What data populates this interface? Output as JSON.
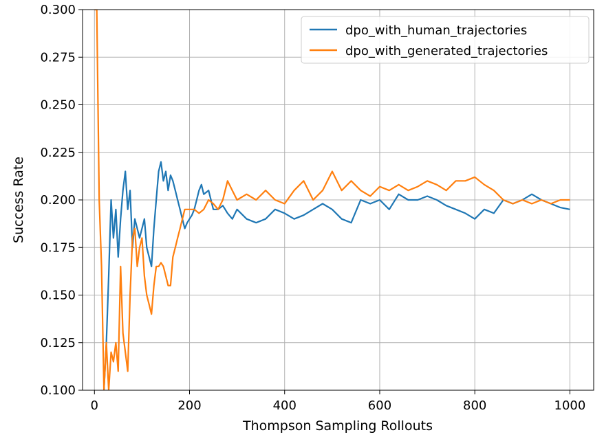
{
  "chart_data": {
    "type": "line",
    "xlabel": "Thompson Sampling Rollouts",
    "ylabel": "Success Rate",
    "xlim": [
      -25,
      1050
    ],
    "ylim": [
      0.1,
      0.3
    ],
    "xticks": [
      0,
      200,
      400,
      600,
      800,
      1000
    ],
    "xtick_labels": [
      "0",
      "200",
      "400",
      "600",
      "800",
      "1000"
    ],
    "yticks": [
      0.1,
      0.125,
      0.15,
      0.175,
      0.2,
      0.225,
      0.25,
      0.275,
      0.3
    ],
    "ytick_labels": [
      "0.100",
      "0.125",
      "0.150",
      "0.175",
      "0.200",
      "0.225",
      "0.250",
      "0.275",
      "0.300"
    ],
    "grid": true,
    "legend_position": "top-right",
    "series": [
      {
        "name": "dpo_with_human_trajectories",
        "color": "#1f77b4",
        "x": [
          20,
          25,
          30,
          35,
          40,
          45,
          50,
          55,
          60,
          65,
          70,
          75,
          80,
          85,
          90,
          95,
          100,
          105,
          110,
          115,
          120,
          125,
          130,
          135,
          140,
          145,
          150,
          155,
          160,
          165,
          170,
          175,
          180,
          185,
          190,
          195,
          200,
          205,
          210,
          215,
          220,
          225,
          230,
          240,
          250,
          260,
          270,
          280,
          290,
          300,
          320,
          340,
          360,
          380,
          400,
          420,
          440,
          460,
          480,
          500,
          520,
          540,
          560,
          580,
          600,
          620,
          640,
          660,
          680,
          700,
          720,
          740,
          760,
          780,
          800,
          820,
          840,
          860,
          880,
          900,
          920,
          940,
          960,
          980,
          1000
        ],
        "y": [
          0.1,
          0.125,
          0.16,
          0.2,
          0.18,
          0.195,
          0.17,
          0.19,
          0.205,
          0.215,
          0.195,
          0.205,
          0.175,
          0.19,
          0.185,
          0.18,
          0.185,
          0.19,
          0.175,
          0.17,
          0.165,
          0.185,
          0.2,
          0.215,
          0.22,
          0.21,
          0.215,
          0.205,
          0.213,
          0.21,
          0.205,
          0.2,
          0.195,
          0.19,
          0.185,
          0.188,
          0.19,
          0.192,
          0.195,
          0.2,
          0.205,
          0.208,
          0.203,
          0.205,
          0.195,
          0.195,
          0.197,
          0.193,
          0.19,
          0.195,
          0.19,
          0.188,
          0.19,
          0.195,
          0.193,
          0.19,
          0.192,
          0.195,
          0.198,
          0.195,
          0.19,
          0.188,
          0.2,
          0.198,
          0.2,
          0.195,
          0.203,
          0.2,
          0.2,
          0.202,
          0.2,
          0.197,
          0.195,
          0.193,
          0.19,
          0.195,
          0.193,
          0.2,
          0.198,
          0.2,
          0.203,
          0.2,
          0.198,
          0.196,
          0.195
        ]
      },
      {
        "name": "dpo_with_generated_trajectories",
        "color": "#ff7f0e",
        "x": [
          0,
          5,
          10,
          15,
          20,
          25,
          30,
          35,
          40,
          45,
          50,
          55,
          60,
          65,
          70,
          75,
          80,
          85,
          90,
          95,
          100,
          105,
          110,
          115,
          120,
          125,
          130,
          135,
          140,
          145,
          150,
          155,
          160,
          165,
          170,
          175,
          180,
          185,
          190,
          195,
          200,
          210,
          220,
          230,
          240,
          250,
          260,
          270,
          280,
          290,
          300,
          320,
          340,
          360,
          380,
          400,
          420,
          440,
          460,
          480,
          500,
          520,
          540,
          560,
          580,
          600,
          620,
          640,
          660,
          680,
          700,
          720,
          740,
          760,
          780,
          800,
          820,
          840,
          860,
          880,
          900,
          920,
          940,
          960,
          980,
          1000
        ],
        "y": [
          0.3,
          0.3,
          0.2,
          0.165,
          0.1,
          0.125,
          0.1,
          0.12,
          0.115,
          0.125,
          0.11,
          0.165,
          0.13,
          0.12,
          0.11,
          0.15,
          0.18,
          0.185,
          0.165,
          0.175,
          0.18,
          0.16,
          0.15,
          0.145,
          0.14,
          0.155,
          0.165,
          0.165,
          0.167,
          0.165,
          0.16,
          0.155,
          0.155,
          0.17,
          0.175,
          0.18,
          0.185,
          0.19,
          0.195,
          0.195,
          0.195,
          0.195,
          0.193,
          0.195,
          0.2,
          0.198,
          0.195,
          0.2,
          0.21,
          0.205,
          0.2,
          0.203,
          0.2,
          0.205,
          0.2,
          0.198,
          0.205,
          0.21,
          0.2,
          0.205,
          0.215,
          0.205,
          0.21,
          0.205,
          0.202,
          0.207,
          0.205,
          0.208,
          0.205,
          0.207,
          0.21,
          0.208,
          0.205,
          0.21,
          0.21,
          0.212,
          0.208,
          0.205,
          0.2,
          0.198,
          0.2,
          0.198,
          0.2,
          0.198,
          0.2,
          0.2
        ]
      }
    ]
  }
}
